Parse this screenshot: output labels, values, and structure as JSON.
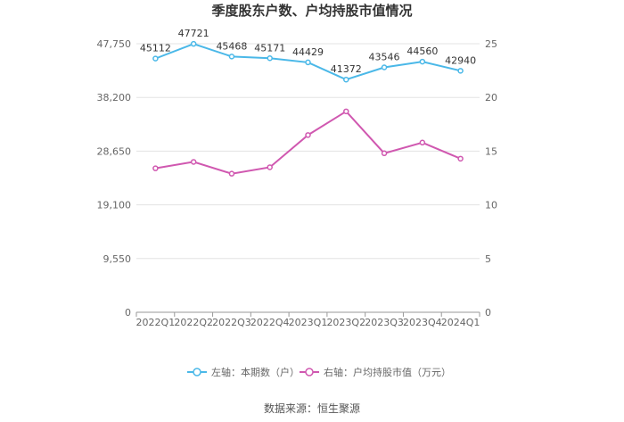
{
  "chart_data": {
    "type": "line",
    "title": "季度股东户数、户均持股市值情况",
    "categories": [
      "2022Q1",
      "2022Q2",
      "2022Q3",
      "2022Q4",
      "2023Q1",
      "2023Q2",
      "2023Q3",
      "2023Q4",
      "2024Q1"
    ],
    "left_axis": {
      "range": [
        0,
        47750
      ],
      "ticks": [
        0,
        9550,
        19100,
        28650,
        38200,
        47750
      ],
      "tick_labels": [
        "0",
        "9,550",
        "19,100",
        "28,650",
        "38,200",
        "47,750"
      ]
    },
    "right_axis": {
      "range": [
        0,
        25
      ],
      "ticks": [
        0,
        5,
        10,
        15,
        20,
        25
      ],
      "tick_labels": [
        "0",
        "5",
        "10",
        "15",
        "20",
        "25"
      ]
    },
    "series": [
      {
        "name": "左轴：本期数（户）",
        "axis": "left",
        "color": "#4ab8e8",
        "values": [
          45112,
          47721,
          45468,
          45171,
          44429,
          41372,
          43546,
          44560,
          42940
        ],
        "data_labels": [
          "45112",
          "47721",
          "45468",
          "45171",
          "44429",
          "41372",
          "43546",
          "44560",
          "42940"
        ]
      },
      {
        "name": "右轴：户均持股市值（万元）",
        "axis": "right",
        "color": "#d058b0",
        "values": [
          13.4,
          14.0,
          12.9,
          13.5,
          16.5,
          18.7,
          14.8,
          15.8,
          14.3
        ]
      }
    ],
    "grid": true,
    "legend_position": "bottom"
  },
  "source": "数据来源：恒生聚源"
}
